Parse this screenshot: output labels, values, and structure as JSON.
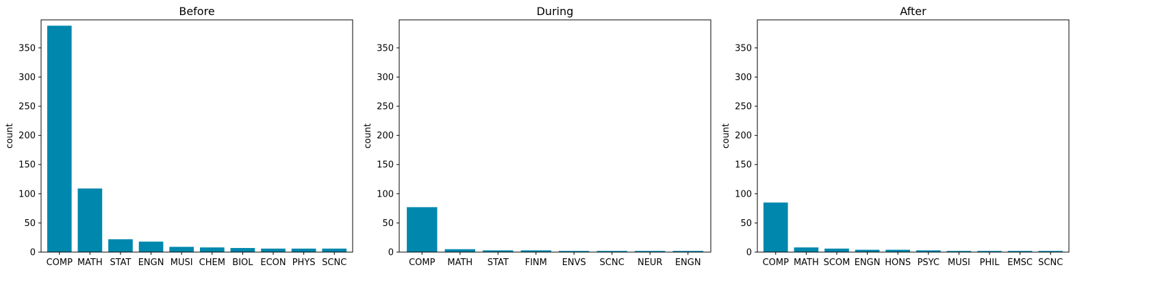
{
  "chart_data": [
    {
      "type": "bar",
      "title": "Before",
      "xlabel": "",
      "ylabel": "count",
      "ylim": [
        0,
        398
      ],
      "yticks": [
        0,
        50,
        100,
        150,
        200,
        250,
        300,
        350
      ],
      "categories": [
        "COMP",
        "MATH",
        "STAT",
        "ENGN",
        "MUSI",
        "CHEM",
        "BIOL",
        "ECON",
        "PHYS",
        "SCNC"
      ],
      "values": [
        388,
        109,
        22,
        18,
        9,
        8,
        7,
        6,
        6,
        6
      ],
      "color": "#0087ad",
      "grid": false
    },
    {
      "type": "bar",
      "title": "During",
      "xlabel": "",
      "ylabel": "count",
      "ylim": [
        0,
        398
      ],
      "yticks": [
        0,
        50,
        100,
        150,
        200,
        250,
        300,
        350
      ],
      "categories": [
        "COMP",
        "MATH",
        "STAT",
        "FINM",
        "ENVS",
        "SCNC",
        "NEUR",
        "ENGN"
      ],
      "values": [
        77,
        5,
        3,
        3,
        2,
        2,
        2,
        2
      ],
      "color": "#0087ad",
      "grid": false
    },
    {
      "type": "bar",
      "title": "After",
      "xlabel": "",
      "ylabel": "count",
      "ylim": [
        0,
        398
      ],
      "yticks": [
        0,
        50,
        100,
        150,
        200,
        250,
        300,
        350
      ],
      "categories": [
        "COMP",
        "MATH",
        "SCOM",
        "ENGN",
        "HONS",
        "PSYC",
        "MUSI",
        "PHIL",
        "EMSC",
        "SCNC"
      ],
      "values": [
        85,
        8,
        6,
        4,
        4,
        3,
        2,
        2,
        2,
        2
      ],
      "color": "#0087ad",
      "grid": false
    }
  ]
}
